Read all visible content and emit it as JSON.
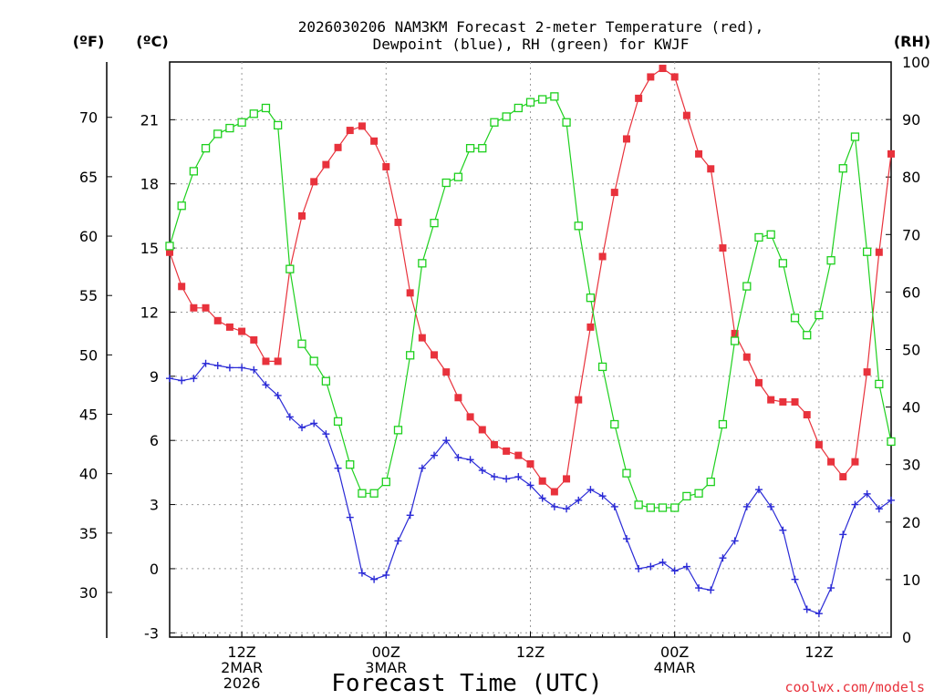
{
  "chart_data": {
    "type": "line",
    "title_line1": "2026030206 NAM3KM Forecast 2-meter Temperature (red),",
    "title_line2": "Dewpoint (blue), RH (green) for KWJF",
    "units": {
      "fahrenheit": "(ºF)",
      "celsius": "(ºC)",
      "rh": "(RH)"
    },
    "xlabel": "Forecast Time (UTC)",
    "credit": "coolwx.com/models",
    "x_range_hours": [
      0,
      60
    ],
    "celsius_range": [
      -3.2,
      23.7
    ],
    "rh_range": [
      0,
      100
    ],
    "fahrenheit_ticks": [
      30,
      35,
      40,
      45,
      50,
      55,
      60,
      65,
      70
    ],
    "celsius_ticks": [
      -3,
      0,
      3,
      6,
      9,
      12,
      15,
      18,
      21
    ],
    "rh_ticks": [
      0,
      10,
      20,
      30,
      40,
      50,
      60,
      70,
      80,
      90,
      100
    ],
    "x_ticks": [
      {
        "hour": 6,
        "line1": "12Z",
        "line2": "2MAR",
        "line3": "2026"
      },
      {
        "hour": 18,
        "line1": "00Z",
        "line2": "3MAR",
        "line3": ""
      },
      {
        "hour": 30,
        "line1": "12Z",
        "line2": "",
        "line3": ""
      },
      {
        "hour": 42,
        "line1": "00Z",
        "line2": "4MAR",
        "line3": ""
      },
      {
        "hour": 54,
        "line1": "12Z",
        "line2": "",
        "line3": ""
      }
    ],
    "series": [
      {
        "name": "2-meter Temperature",
        "unit": "C",
        "color": "#e8323c",
        "marker": "filled-square",
        "values": [
          14.8,
          13.2,
          12.2,
          12.2,
          11.6,
          11.3,
          11.1,
          10.7,
          9.7,
          9.7,
          14.0,
          16.5,
          18.1,
          18.9,
          19.7,
          20.5,
          20.7,
          20.0,
          18.8,
          16.2,
          12.9,
          10.8,
          10.0,
          9.2,
          8.0,
          7.1,
          6.5,
          5.8,
          5.5,
          5.3,
          4.9,
          4.1,
          3.6,
          4.2,
          7.9,
          11.3,
          14.6,
          17.6,
          20.1,
          22.0,
          23.0,
          23.4,
          23.0,
          21.2,
          19.4,
          18.7,
          15.0,
          11.0,
          9.9,
          8.7,
          7.9,
          7.8,
          7.8,
          7.2,
          5.8,
          5.0,
          4.3,
          5.0,
          9.2,
          14.8,
          19.4
        ]
      },
      {
        "name": "Dewpoint",
        "unit": "C",
        "color": "#2a2ad6",
        "marker": "plus",
        "values": [
          8.9,
          8.8,
          8.9,
          9.6,
          9.5,
          9.4,
          9.4,
          9.3,
          8.6,
          8.1,
          7.1,
          6.6,
          6.8,
          6.3,
          4.7,
          2.4,
          -0.2,
          -0.5,
          -0.3,
          1.3,
          2.5,
          4.7,
          5.3,
          6.0,
          5.2,
          5.1,
          4.6,
          4.3,
          4.2,
          4.3,
          3.9,
          3.3,
          2.9,
          2.8,
          3.2,
          3.7,
          3.4,
          2.9,
          1.4,
          0.0,
          0.1,
          0.3,
          -0.1,
          0.1,
          -0.9,
          -1.0,
          0.5,
          1.3,
          2.9,
          3.7,
          2.9,
          1.8,
          -0.5,
          -1.9,
          -2.1,
          -0.9,
          1.6,
          3.0,
          3.5,
          2.8,
          3.2
        ]
      },
      {
        "name": "RH",
        "unit": "percent",
        "color": "#1ed01e",
        "marker": "open-square",
        "values": [
          68,
          75,
          81,
          85,
          87.5,
          88.5,
          89.5,
          91,
          92,
          89,
          64,
          51,
          48,
          44.5,
          37.5,
          30,
          25,
          25,
          27,
          36,
          49,
          65,
          72,
          79,
          80,
          85,
          85,
          89.5,
          90.5,
          92,
          93,
          93.5,
          94,
          89.5,
          71.5,
          59,
          47,
          37,
          28.5,
          23,
          22.5,
          22.5,
          22.5,
          24.5,
          25,
          27,
          37,
          51.5,
          61,
          69.5,
          70,
          65,
          55.5,
          52.5,
          56,
          65.5,
          81.5,
          87,
          67,
          44,
          34
        ]
      }
    ]
  }
}
